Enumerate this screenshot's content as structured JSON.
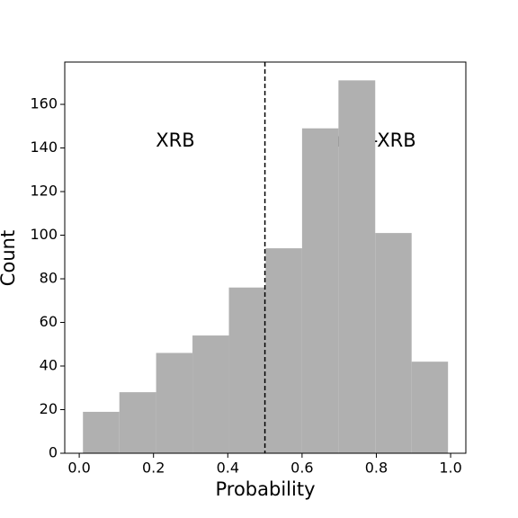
{
  "chart_data": {
    "type": "histogram",
    "xlabel": "Probability",
    "ylabel": "Count",
    "bins": [
      0.01,
      0.108,
      0.207,
      0.305,
      0.403,
      0.502,
      0.6,
      0.698,
      0.797,
      0.895,
      0.993
    ],
    "counts": [
      19,
      28,
      46,
      54,
      76,
      94,
      149,
      171,
      101,
      42
    ],
    "color": "#b0b0b0",
    "xlim": [
      -0.039,
      1.041
    ],
    "ylim": [
      0,
      179.4
    ],
    "xticks": [
      {
        "value": 0,
        "label": "0.0"
      },
      0.2,
      0.4,
      0.6,
      0.8,
      {
        "value": 1,
        "label": "1.0"
      }
    ],
    "yticks": [
      0,
      20,
      40,
      60,
      80,
      100,
      120,
      140,
      160
    ],
    "vline": 0.5,
    "annotations": [
      "XRB",
      "non-XRB"
    ]
  }
}
